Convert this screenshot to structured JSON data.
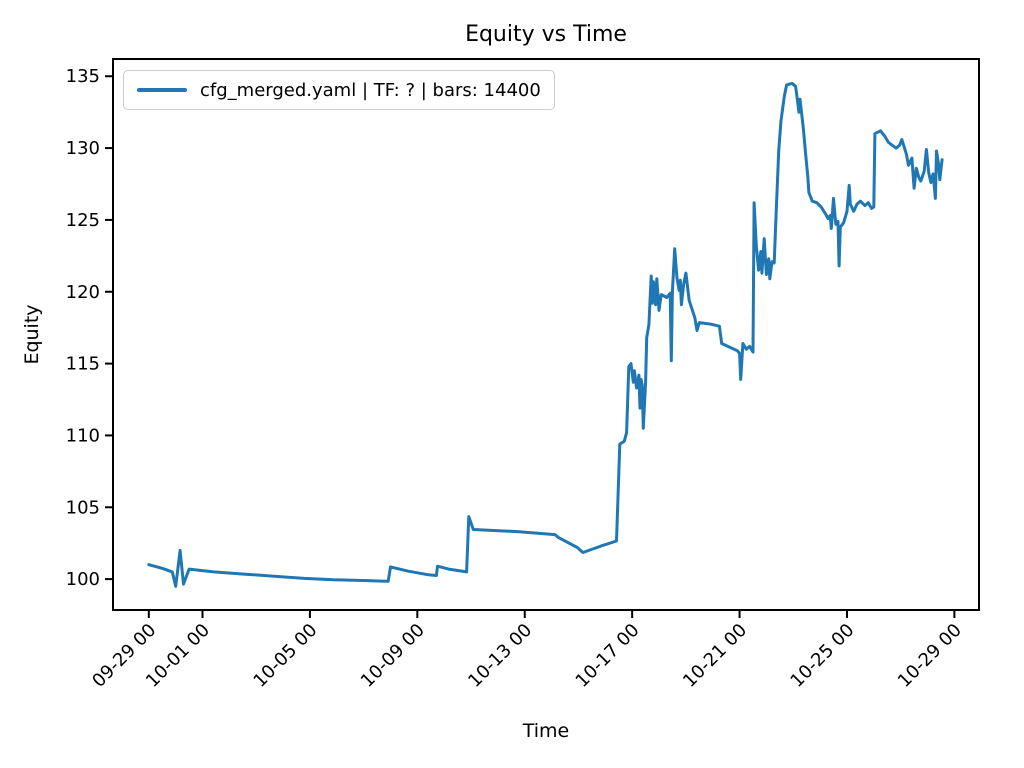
{
  "figure": {
    "title": "Equity vs Time"
  },
  "chart_data": {
    "type": "line",
    "title": "Equity vs Time",
    "xlabel": "Time",
    "ylabel": "Equity",
    "grid": false,
    "legend_position": "upper-left",
    "x_unit": "hours since 09-29 00:00",
    "xlim": [
      -32,
      742
    ],
    "ylim": [
      97.85,
      136.2
    ],
    "xticks": [
      {
        "t": 0,
        "label": "09-29 00"
      },
      {
        "t": 48,
        "label": "10-01 00"
      },
      {
        "t": 144,
        "label": "10-05 00"
      },
      {
        "t": 240,
        "label": "10-09 00"
      },
      {
        "t": 336,
        "label": "10-13 00"
      },
      {
        "t": 432,
        "label": "10-17 00"
      },
      {
        "t": 528,
        "label": "10-21 00"
      },
      {
        "t": 624,
        "label": "10-25 00"
      },
      {
        "t": 720,
        "label": "10-29 00"
      }
    ],
    "yticks": [
      {
        "v": 100,
        "label": "100"
      },
      {
        "v": 105,
        "label": "105"
      },
      {
        "v": 110,
        "label": "110"
      },
      {
        "v": 115,
        "label": "115"
      },
      {
        "v": 120,
        "label": "120"
      },
      {
        "v": 125,
        "label": "125"
      },
      {
        "v": 130,
        "label": "130"
      },
      {
        "v": 135,
        "label": "135"
      }
    ],
    "series": [
      {
        "name": "cfg_merged.yaml | TF: ? | bars: 14400",
        "color": "#1f77b4",
        "points": [
          [
            0,
            101.0
          ],
          [
            12,
            100.75
          ],
          [
            21,
            100.5
          ],
          [
            24,
            99.5
          ],
          [
            28,
            102.0
          ],
          [
            31,
            99.65
          ],
          [
            36,
            100.7
          ],
          [
            58,
            100.5
          ],
          [
            85,
            100.35
          ],
          [
            112,
            100.2
          ],
          [
            139,
            100.05
          ],
          [
            165,
            99.95
          ],
          [
            192,
            99.9
          ],
          [
            214,
            99.85
          ],
          [
            216,
            100.85
          ],
          [
            232,
            100.55
          ],
          [
            250,
            100.3
          ],
          [
            257,
            100.25
          ],
          [
            258,
            100.9
          ],
          [
            268,
            100.7
          ],
          [
            284,
            100.5
          ],
          [
            286,
            104.35
          ],
          [
            290,
            103.45
          ],
          [
            331,
            103.3
          ],
          [
            363,
            103.1
          ],
          [
            366,
            102.9
          ],
          [
            383,
            102.2
          ],
          [
            388,
            101.85
          ],
          [
            404,
            102.3
          ],
          [
            418,
            102.65
          ],
          [
            421,
            109.4
          ],
          [
            425,
            109.6
          ],
          [
            427,
            110.2
          ],
          [
            429,
            114.8
          ],
          [
            431,
            115.0
          ],
          [
            433,
            113.7
          ],
          [
            434,
            114.5
          ],
          [
            436,
            113.3
          ],
          [
            438,
            114.2
          ],
          [
            439,
            111.9
          ],
          [
            440,
            113.9
          ],
          [
            441,
            113.5
          ],
          [
            442,
            110.5
          ],
          [
            444,
            113.7
          ],
          [
            445,
            116.8
          ],
          [
            447,
            117.7
          ],
          [
            449,
            121.1
          ],
          [
            450,
            119.2
          ],
          [
            451,
            120.7
          ],
          [
            453,
            119.1
          ],
          [
            454,
            120.9
          ],
          [
            456,
            118.7
          ],
          [
            458,
            119.8
          ],
          [
            463,
            119.6
          ],
          [
            466,
            119.9
          ],
          [
            467,
            115.2
          ],
          [
            468,
            120.0
          ],
          [
            470,
            123.0
          ],
          [
            472,
            121.0
          ],
          [
            474,
            120.1
          ],
          [
            475,
            120.8
          ],
          [
            476,
            119.1
          ],
          [
            478,
            120.5
          ],
          [
            480,
            121.3
          ],
          [
            483,
            119.4
          ],
          [
            485,
            118.9
          ],
          [
            488,
            118.2
          ],
          [
            490,
            117.3
          ],
          [
            492,
            117.85
          ],
          [
            502,
            117.75
          ],
          [
            510,
            117.6
          ],
          [
            512,
            116.4
          ],
          [
            526,
            115.9
          ],
          [
            528,
            115.7
          ],
          [
            529,
            113.9
          ],
          [
            531,
            116.4
          ],
          [
            534,
            116.0
          ],
          [
            537,
            116.2
          ],
          [
            540,
            115.8
          ],
          [
            541,
            126.2
          ],
          [
            543,
            123.2
          ],
          [
            545,
            121.5
          ],
          [
            547,
            122.8
          ],
          [
            548,
            121.3
          ],
          [
            550,
            123.7
          ],
          [
            552,
            121.2
          ],
          [
            554,
            122.3
          ],
          [
            555,
            120.9
          ],
          [
            557,
            122.1
          ],
          [
            559,
            122.0
          ],
          [
            561,
            126.1
          ],
          [
            562,
            127.9
          ],
          [
            563,
            129.8
          ],
          [
            565,
            131.9
          ],
          [
            568,
            133.6
          ],
          [
            570,
            134.4
          ],
          [
            575,
            134.5
          ],
          [
            578,
            134.3
          ],
          [
            579,
            133.8
          ],
          [
            581,
            132.5
          ],
          [
            582,
            133.4
          ],
          [
            585,
            131.4
          ],
          [
            587,
            129.6
          ],
          [
            589,
            128.0
          ],
          [
            590,
            126.9
          ],
          [
            593,
            126.3
          ],
          [
            597,
            126.2
          ],
          [
            601,
            125.9
          ],
          [
            605,
            125.4
          ],
          [
            607,
            125.1
          ],
          [
            609,
            125.3
          ],
          [
            610,
            124.4
          ],
          [
            612,
            126.5
          ],
          [
            614,
            124.7
          ],
          [
            616,
            124.9
          ],
          [
            617,
            121.8
          ],
          [
            618,
            124.5
          ],
          [
            621,
            124.8
          ],
          [
            624,
            125.6
          ],
          [
            626,
            127.4
          ],
          [
            627,
            126.1
          ],
          [
            630,
            125.6
          ],
          [
            633,
            126.1
          ],
          [
            636,
            126.3
          ],
          [
            640,
            126.0
          ],
          [
            643,
            126.2
          ],
          [
            646,
            125.8
          ],
          [
            648,
            125.9
          ],
          [
            649,
            131.0
          ],
          [
            654,
            131.2
          ],
          [
            658,
            130.8
          ],
          [
            661,
            130.4
          ],
          [
            666,
            130.1
          ],
          [
            668,
            130.0
          ],
          [
            671,
            130.2
          ],
          [
            673,
            130.6
          ],
          [
            677,
            129.6
          ],
          [
            679,
            128.8
          ],
          [
            682,
            129.3
          ],
          [
            684,
            127.2
          ],
          [
            686,
            128.6
          ],
          [
            688,
            128.0
          ],
          [
            690,
            127.7
          ],
          [
            693,
            128.4
          ],
          [
            695,
            129.9
          ],
          [
            697,
            128.3
          ],
          [
            699,
            127.6
          ],
          [
            701,
            128.2
          ],
          [
            703,
            126.5
          ],
          [
            704,
            129.8
          ],
          [
            706,
            128.8
          ],
          [
            707,
            127.8
          ],
          [
            709,
            129.2
          ]
        ]
      }
    ]
  }
}
